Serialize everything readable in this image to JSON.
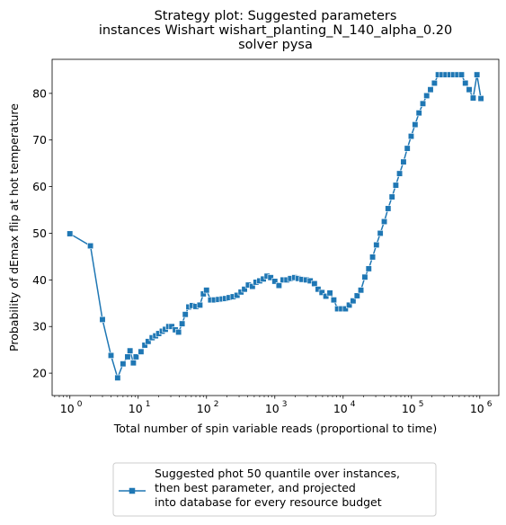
{
  "chart_data": {
    "type": "line",
    "title_lines": [
      "Strategy plot: Suggested parameters",
      "instances Wishart wishart_planting_N_140_alpha_0.20",
      "solver pysa"
    ],
    "xlabel": "Total number of spin variable reads (proportional to time)",
    "ylabel": "Probability of dEmax flip at hot temperature",
    "xscale": "log",
    "xlim": [
      0.55,
      1900000
    ],
    "ylim": [
      15.2,
      87.3
    ],
    "x_ticks": [
      {
        "base": "10",
        "exp": "0",
        "value": 1
      },
      {
        "base": "10",
        "exp": "1",
        "value": 10
      },
      {
        "base": "10",
        "exp": "2",
        "value": 100
      },
      {
        "base": "10",
        "exp": "3",
        "value": 1000
      },
      {
        "base": "10",
        "exp": "4",
        "value": 10000
      },
      {
        "base": "10",
        "exp": "5",
        "value": 100000
      },
      {
        "base": "10",
        "exp": "6",
        "value": 1000000
      }
    ],
    "y_ticks": [
      "20",
      "30",
      "40",
      "50",
      "60",
      "70",
      "80"
    ],
    "y_tick_values": [
      20,
      30,
      40,
      50,
      60,
      70,
      80
    ],
    "grid": false,
    "legend_position": "below",
    "color": "#1f77b4",
    "series": [
      {
        "name_lines": [
          "Suggested phot 50 quantile over instances,",
          " then best parameter, and projected",
          "into database for every resource budget"
        ],
        "marker": "square",
        "x": [
          1,
          2,
          3,
          4,
          5,
          6,
          7,
          7.6,
          8.5,
          9.3,
          11,
          12.5,
          14,
          16,
          18,
          20,
          22.5,
          25,
          28,
          31,
          35,
          39,
          44,
          49,
          55,
          62,
          70,
          80,
          90,
          100,
          115,
          130,
          150,
          170,
          190,
          215,
          245,
          280,
          320,
          360,
          410,
          470,
          530,
          600,
          680,
          770,
          870,
          1000,
          1150,
          1320,
          1500,
          1700,
          1950,
          2200,
          2500,
          2900,
          3300,
          3800,
          4300,
          4900,
          5600,
          6400,
          7300,
          8300,
          9500,
          10800,
          12300,
          14000,
          16000,
          18200,
          20800,
          23700,
          27000,
          30700,
          35000,
          40000,
          45500,
          52000,
          59000,
          67000,
          76500,
          87000,
          99000,
          113000,
          129000,
          147000,
          167000,
          190000,
          217000,
          247000,
          282000,
          320000,
          365000,
          415000,
          475000,
          540000,
          615000,
          700000,
          800000,
          910000,
          1040000
        ],
        "y": [
          49.9,
          47.3,
          31.5,
          23.8,
          19.0,
          22.0,
          23.5,
          24.8,
          22.2,
          23.5,
          24.6,
          26.0,
          26.8,
          27.6,
          28.0,
          28.5,
          29.0,
          29.4,
          30.0,
          30.0,
          29.3,
          28.8,
          30.6,
          32.6,
          34.2,
          34.5,
          34.3,
          34.6,
          37.0,
          37.8,
          35.7,
          35.7,
          35.8,
          35.9,
          36.0,
          36.2,
          36.4,
          36.7,
          37.4,
          38.0,
          38.9,
          38.6,
          39.5,
          39.8,
          40.2,
          40.8,
          40.5,
          39.7,
          38.8,
          40.0,
          40.0,
          40.3,
          40.5,
          40.3,
          40.1,
          40.0,
          39.8,
          39.2,
          38.0,
          37.3,
          36.5,
          37.2,
          35.7,
          33.8,
          33.8,
          33.8,
          34.6,
          35.5,
          36.6,
          37.8,
          40.6,
          42.4,
          44.9,
          47.5,
          50.0,
          52.5,
          55.3,
          57.8,
          60.3,
          62.8,
          65.3,
          68.2,
          70.8,
          73.3,
          75.8,
          77.8,
          79.5,
          80.8,
          82.2,
          84.0,
          84.0,
          84.0,
          84.0,
          84.0,
          84.0,
          84.0,
          82.2,
          80.8,
          79.0,
          84.0,
          78.9
        ]
      }
    ]
  }
}
